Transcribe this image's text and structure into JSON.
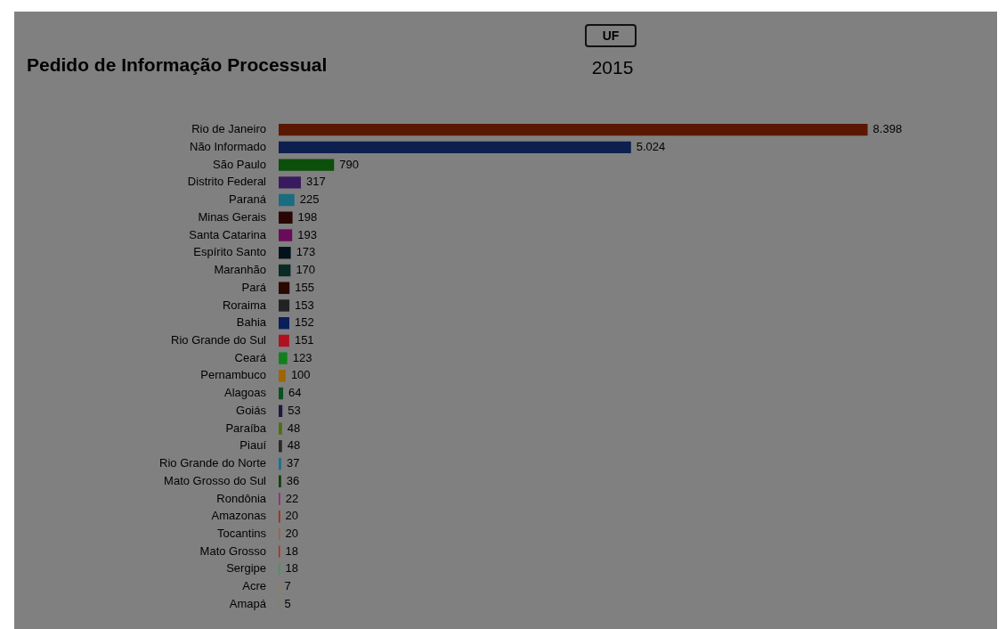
{
  "chart_data": {
    "type": "bar",
    "orientation": "horizontal",
    "title": "Pedido de Informação Processual",
    "subtitle": "2015",
    "annotations": [
      "UF"
    ],
    "categories": [
      "Rio de Janeiro",
      "Não Informado",
      "São Paulo",
      "Distrito Federal",
      "Paraná",
      "Minas Gerais",
      "Santa Catarina",
      "Espírito Santo",
      "Maranhão",
      "Pará",
      "Roraima",
      "Bahia",
      "Rio Grande do Sul",
      "Ceará",
      "Pernambuco",
      "Alagoas",
      "Goiás",
      "Paraíba",
      "Piauí",
      "Rio Grande do Norte",
      "Mato Grosso do Sul",
      "Rondônia",
      "Amazonas",
      "Tocantins",
      "Mato Grosso",
      "Sergipe",
      "Acre",
      "Amapá"
    ],
    "values": [
      8398,
      5024,
      790,
      317,
      225,
      198,
      193,
      173,
      170,
      155,
      153,
      152,
      151,
      123,
      100,
      64,
      53,
      48,
      48,
      37,
      36,
      22,
      20,
      20,
      18,
      18,
      7,
      5
    ],
    "value_labels": [
      "8.398",
      "5.024",
      "790",
      "317",
      "225",
      "198",
      "193",
      "173",
      "170",
      "155",
      "153",
      "152",
      "151",
      "123",
      "100",
      "64",
      "53",
      "48",
      "48",
      "37",
      "36",
      "22",
      "20",
      "20",
      "18",
      "18",
      "7",
      "5"
    ],
    "colors": [
      "#5a1800",
      "#0c1f4f",
      "#0b4f0b",
      "#3a1a5e",
      "#1a6c80",
      "#2a0505",
      "#6a0a5a",
      "#03121a",
      "#0a2a24",
      "#2a0800",
      "#222222",
      "#0a1e5a",
      "#b01020",
      "#10801e",
      "#a06400",
      "#0a5020",
      "#1a1a40",
      "#4a7010",
      "#2a2a2a",
      "#207090",
      "#104010",
      "#a02080",
      "#b02010",
      "#a06040",
      "#c02010",
      "#30a060",
      "#b08010",
      "#709020"
    ]
  }
}
